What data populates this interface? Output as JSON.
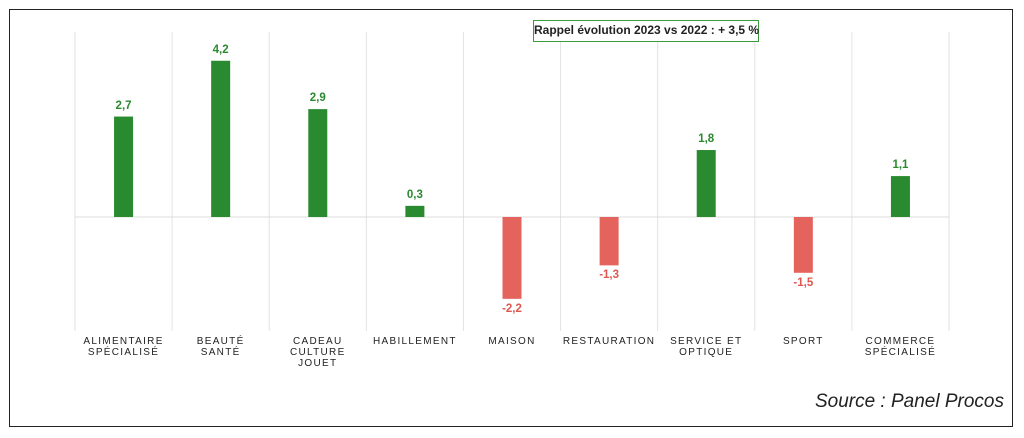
{
  "chart_data": {
    "type": "bar",
    "categories": [
      "ALIMENTAIRE\nSPÉCIALISÉ",
      "BEAUTÉ\nSANTÉ",
      "CADEAU\nCULTURE\nJOUET",
      "HABILLEMENT",
      "MAISON",
      "RESTAURATION",
      "SERVICE ET\nOPTIQUE",
      "SPORT",
      "COMMERCE\nSPÉCIALISÉ"
    ],
    "values": [
      2.7,
      4.2,
      2.9,
      0.3,
      -2.2,
      -1.3,
      1.8,
      -1.5,
      1.1
    ],
    "value_labels": [
      "2,7",
      "4,2",
      "2,9",
      "0,3",
      "-2,2",
      "-1,3",
      "1,8",
      "-1,5",
      "1,1"
    ],
    "title": "",
    "xlabel": "",
    "ylabel": "",
    "ylim": [
      -2.7,
      4.9
    ],
    "grid": "vertical separators only",
    "legend": "none",
    "colors": {
      "positive": "#2a8a2f",
      "negative": "#e5635d",
      "positive_label": "#2a8a2f",
      "negative_label": "#e0564f"
    },
    "annotation": "Rappel évolution 2023 vs 2022 : + 3,5 %"
  },
  "source": "Source : Panel Procos"
}
